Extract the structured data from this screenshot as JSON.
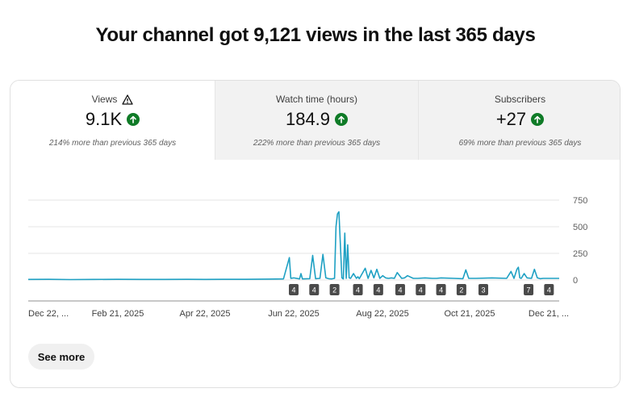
{
  "headline": "Your channel got 9,121 views in the last 365 days",
  "tabs": [
    {
      "title": "Views",
      "title_icon": "warning-icon",
      "value": "9.1K",
      "trend_icon": "arrow-up-icon",
      "note": "214% more than previous 365 days",
      "active": true
    },
    {
      "title": "Watch time (hours)",
      "value": "184.9",
      "trend_icon": "arrow-up-icon",
      "note": "222% more than previous 365 days",
      "active": false
    },
    {
      "title": "Subscribers",
      "value": "+27",
      "trend_icon": "arrow-up-icon",
      "note": "69% more than previous 365 days",
      "active": false
    }
  ],
  "see_more_label": "See more",
  "colors": {
    "line": "#1ea0c3",
    "trend_up": "#0f7b27",
    "marker": "#4a4a4a",
    "gridline": "#e6e6e6"
  },
  "chart_data": {
    "type": "line",
    "x_start": "2024-12-22",
    "x_end": "2025-12-21",
    "x_tick_labels": [
      "Dec 22, ...",
      "Feb 21, 2025",
      "Apr 22, 2025",
      "Jun 22, 2025",
      "Aug 22, 2025",
      "Oct 21, 2025",
      "Dec 21, ..."
    ],
    "y_ticks": [
      0,
      250,
      500,
      750
    ],
    "ylim": [
      0,
      750
    ],
    "grid": true,
    "series": [
      {
        "x": [
          "2024-12-22",
          "2025-01-05",
          "2025-01-20",
          "2025-02-05",
          "2025-02-21",
          "2025-03-10",
          "2025-03-25",
          "2025-04-10",
          "2025-04-22",
          "2025-05-05",
          "2025-05-20",
          "2025-06-05",
          "2025-06-15",
          "2025-06-19",
          "2025-06-20",
          "2025-06-22",
          "2025-06-26",
          "2025-06-27",
          "2025-06-28",
          "2025-07-03",
          "2025-07-05",
          "2025-07-07",
          "2025-07-10",
          "2025-07-12",
          "2025-07-14",
          "2025-07-16",
          "2025-07-18",
          "2025-07-20",
          "2025-07-21",
          "2025-07-22",
          "2025-07-23",
          "2025-07-25",
          "2025-07-26",
          "2025-07-27",
          "2025-07-28",
          "2025-07-29",
          "2025-07-30",
          "2025-07-31",
          "2025-08-02",
          "2025-08-04",
          "2025-08-05",
          "2025-08-06",
          "2025-08-10",
          "2025-08-12",
          "2025-08-14",
          "2025-08-16",
          "2025-08-18",
          "2025-08-20",
          "2025-08-22",
          "2025-08-24",
          "2025-08-26",
          "2025-08-28",
          "2025-08-30",
          "2025-09-01",
          "2025-09-04",
          "2025-09-06",
          "2025-09-08",
          "2025-09-12",
          "2025-09-15",
          "2025-09-20",
          "2025-09-25",
          "2025-09-28",
          "2025-10-01",
          "2025-10-10",
          "2025-10-16",
          "2025-10-18",
          "2025-10-20",
          "2025-10-25",
          "2025-11-05",
          "2025-11-15",
          "2025-11-18",
          "2025-11-20",
          "2025-11-22",
          "2025-11-23",
          "2025-11-24",
          "2025-11-25",
          "2025-11-27",
          "2025-11-29",
          "2025-12-02",
          "2025-12-04",
          "2025-12-06",
          "2025-12-08",
          "2025-12-10",
          "2025-12-12",
          "2025-12-14",
          "2025-12-16",
          "2025-12-18",
          "2025-12-21"
        ],
        "y": [
          5,
          6,
          4,
          5,
          6,
          5,
          5,
          6,
          5,
          6,
          6,
          8,
          10,
          210,
          15,
          20,
          10,
          60,
          10,
          12,
          230,
          12,
          15,
          240,
          20,
          12,
          10,
          15,
          500,
          620,
          640,
          20,
          10,
          440,
          15,
          330,
          20,
          15,
          60,
          15,
          30,
          12,
          110,
          15,
          90,
          20,
          100,
          15,
          40,
          20,
          15,
          20,
          15,
          70,
          15,
          20,
          40,
          15,
          15,
          20,
          15,
          15,
          20,
          15,
          12,
          95,
          15,
          15,
          20,
          15,
          80,
          15,
          100,
          120,
          20,
          15,
          60,
          20,
          15,
          100,
          20,
          12,
          15,
          15,
          15,
          15,
          15,
          15
        ]
      }
    ],
    "markers": [
      {
        "date": "2025-06-22",
        "label": "4"
      },
      {
        "date": "2025-07-06",
        "label": "4"
      },
      {
        "date": "2025-07-20",
        "label": "2"
      },
      {
        "date": "2025-08-05",
        "label": "4"
      },
      {
        "date": "2025-08-19",
        "label": "4"
      },
      {
        "date": "2025-09-03",
        "label": "4"
      },
      {
        "date": "2025-09-17",
        "label": "4"
      },
      {
        "date": "2025-10-01",
        "label": "4"
      },
      {
        "date": "2025-10-15",
        "label": "2"
      },
      {
        "date": "2025-10-30",
        "label": "3"
      },
      {
        "date": "2025-11-30",
        "label": "7"
      },
      {
        "date": "2025-12-14",
        "label": "4"
      }
    ]
  }
}
